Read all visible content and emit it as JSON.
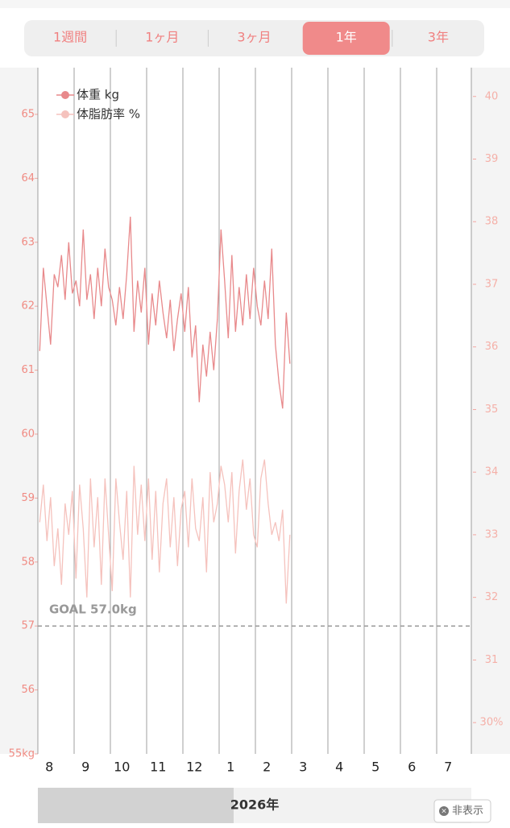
{
  "tabs": {
    "items": [
      "1週間",
      "1ヶ月",
      "3ヶ月",
      "1年",
      "3年"
    ],
    "active": 3
  },
  "chart_data": {
    "type": "line",
    "legend": "top-left",
    "grid": true,
    "categories": [
      null,
      null,
      "8",
      null,
      null,
      null,
      null,
      null,
      null,
      null,
      null,
      null,
      "9",
      null,
      null,
      null,
      null,
      null,
      null,
      null,
      null,
      null,
      "10",
      null,
      null,
      null,
      null,
      null,
      null,
      null,
      null,
      null,
      "11",
      null,
      null,
      null,
      null,
      null,
      null,
      null,
      null,
      null,
      "12",
      null,
      null,
      null,
      null,
      null,
      null,
      null,
      null,
      null,
      "1",
      null,
      null,
      null,
      null,
      null,
      null,
      null,
      null,
      null,
      "2",
      null,
      null,
      null,
      null,
      null,
      null,
      null,
      null,
      null,
      "3",
      null,
      null,
      null,
      null,
      null,
      null,
      null,
      null,
      null,
      "4",
      null,
      null,
      null,
      null,
      null,
      null,
      null,
      null,
      null,
      "5",
      null,
      null,
      null,
      null,
      null,
      null,
      null,
      null,
      null,
      "6",
      null,
      null,
      null,
      null,
      null,
      null,
      null,
      null,
      null,
      "7",
      null,
      null,
      null,
      null,
      null,
      null,
      null
    ],
    "series": [
      {
        "name": "体重 kg",
        "color": "#e8898b",
        "axis": "y",
        "values": [
          61.3,
          62.6,
          62.0,
          61.4,
          62.5,
          62.3,
          62.8,
          62.1,
          63.0,
          62.2,
          62.4,
          62.0,
          63.2,
          62.1,
          62.5,
          61.8,
          62.6,
          62.0,
          62.9,
          62.3,
          62.1,
          61.7,
          62.3,
          61.8,
          62.5,
          63.4,
          61.6,
          62.4,
          61.9,
          62.6,
          61.4,
          62.2,
          61.7,
          62.4,
          61.9,
          61.5,
          62.1,
          61.3,
          61.8,
          62.2,
          61.6,
          62.3,
          61.2,
          61.7,
          60.5,
          61.4,
          60.9,
          61.6,
          61.0,
          61.8,
          63.2,
          62.4,
          61.5,
          62.8,
          61.6,
          62.3,
          61.7,
          62.5,
          61.8,
          62.6,
          62.0,
          61.7,
          62.4,
          61.8,
          62.9,
          61.4,
          60.8,
          60.4,
          61.9,
          61.1,
          null,
          null,
          null,
          null,
          null,
          null,
          null,
          null,
          null,
          null,
          null,
          null,
          null,
          null,
          null,
          null,
          null,
          null,
          null,
          null,
          null,
          null,
          null,
          null,
          null,
          null,
          null,
          null,
          null,
          null,
          null,
          null,
          null,
          null,
          null,
          null,
          null,
          null,
          null,
          null,
          null,
          null,
          null,
          null,
          null,
          null,
          null,
          null,
          null,
          null
        ]
      },
      {
        "name": "体脂肪率 %",
        "color": "#f5c2bd",
        "axis": "y2",
        "values": [
          33.2,
          33.8,
          32.9,
          33.6,
          32.5,
          33.1,
          32.2,
          33.5,
          33.0,
          33.7,
          32.3,
          33.8,
          33.1,
          32.0,
          33.9,
          32.8,
          33.6,
          32.2,
          33.9,
          33.0,
          32.1,
          33.9,
          33.2,
          32.6,
          33.7,
          32.0,
          34.1,
          33.0,
          33.8,
          32.9,
          33.9,
          32.6,
          33.7,
          32.4,
          33.5,
          33.9,
          32.8,
          33.6,
          32.5,
          33.4,
          33.7,
          32.8,
          33.9,
          33.1,
          32.9,
          33.6,
          32.4,
          34.0,
          33.2,
          33.5,
          34.1,
          33.8,
          33.2,
          34.0,
          32.7,
          33.7,
          34.2,
          33.4,
          33.9,
          33.0,
          32.8,
          33.9,
          34.2,
          33.5,
          33.0,
          33.2,
          32.9,
          33.4,
          31.9,
          33.0,
          null,
          null,
          null,
          null,
          null,
          null,
          null,
          null,
          null,
          null,
          null,
          null,
          null,
          null,
          null,
          null,
          null,
          null,
          null,
          null,
          null,
          null,
          null,
          null,
          null,
          null,
          null,
          null,
          null,
          null,
          null,
          null,
          null,
          null,
          null,
          null,
          null,
          null,
          null,
          null,
          null,
          null,
          null,
          null,
          null,
          null,
          null,
          null,
          null,
          null
        ]
      }
    ],
    "ylim": [
      55,
      65.73
    ],
    "yticks": [
      {
        "value": 55,
        "label": "55kg"
      },
      56,
      57,
      58,
      59,
      60,
      61,
      62,
      63,
      64,
      65
    ],
    "y2lim": [
      29.5,
      40.46
    ],
    "y2ticks": [
      {
        "value": 30,
        "label": "30%"
      },
      31,
      32,
      33,
      34,
      35,
      36,
      37,
      38,
      39,
      40
    ],
    "goal": {
      "label": "GOAL 57.0kg",
      "value": 57
    }
  },
  "scroll": {
    "label": "2026年"
  },
  "hide_button": "非表示"
}
